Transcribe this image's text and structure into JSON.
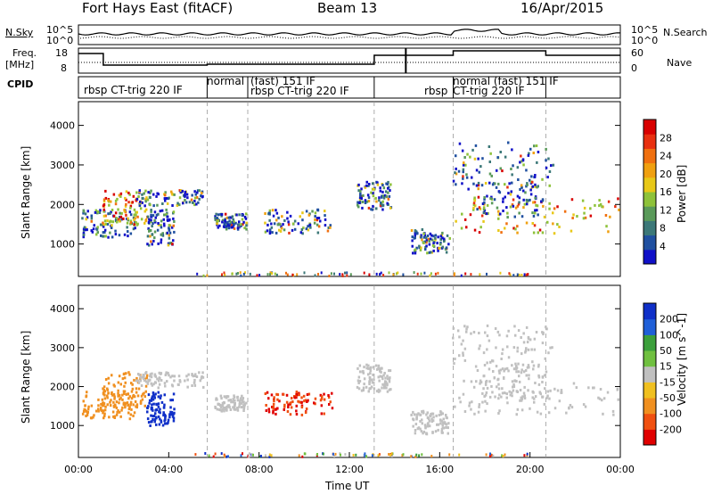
{
  "header": {
    "title": "Fort Hays East (fitACF)",
    "beam": "Beam 13",
    "date": "16/Apr/2015"
  },
  "top_panels": {
    "nsky_label": "N.Sky",
    "nsearch_label": "N.Search",
    "freq_label_line1": "Freq.",
    "freq_label_line2": "[MHz]",
    "nave_label": "Nave",
    "cpid_label": "CPID",
    "noise_ticks_left": [
      "10^5",
      "10^0"
    ],
    "noise_ticks_right": [
      "10^5",
      "10^0"
    ],
    "freq_ticks": [
      "18",
      "8"
    ],
    "nave_ticks": [
      "60",
      "0"
    ],
    "cpid_segments": [
      {
        "text": "rbsp CT-trig 220 IF"
      },
      {
        "text": "normal"
      },
      {
        "text": "(fast) 151 IF"
      },
      {
        "text": "rbsp CT-trig 220 IF"
      },
      {
        "text": "rbsp"
      },
      {
        "text": "normal (fast) 151 IF"
      },
      {
        "text": "CT-trig 220 IF"
      }
    ]
  },
  "chart_data": [
    {
      "type": "heatmap",
      "name": "power",
      "ylabel": "Slant Range [km]",
      "xlabel": "",
      "xlim_hours": [
        0,
        24
      ],
      "ylim": [
        180,
        4600
      ],
      "yticks": [
        1000,
        2000,
        3000,
        4000
      ],
      "colorbar": {
        "label": "Power [dB]",
        "ticks": [
          4,
          8,
          12,
          16,
          20,
          24,
          28
        ],
        "colors": [
          "#1010c8",
          "#2050a0",
          "#3c7878",
          "#5a9a5a",
          "#8ec23a",
          "#e8c818",
          "#f0a010",
          "#f07010",
          "#e83010",
          "#d80000"
        ]
      }
    },
    {
      "type": "heatmap",
      "name": "velocity",
      "ylabel": "Slant Range [km]",
      "xlabel": "Time UT",
      "xlim_hours": [
        0,
        24
      ],
      "ylim": [
        180,
        4600
      ],
      "yticks": [
        1000,
        2000,
        3000,
        4000
      ],
      "xticks": [
        "00:00",
        "04:00",
        "08:00",
        "12:00",
        "16:00",
        "20:00",
        "00:00"
      ],
      "colorbar": {
        "label": "Velocity [m s^-1]",
        "ticks": [
          "200",
          "100",
          "50",
          "15",
          "-15",
          "-50",
          "-100",
          "-200"
        ],
        "colors": [
          "#1030c8",
          "#2060d8",
          "#3ca03c",
          "#70c040",
          "#c0c0c0",
          "#f0c020",
          "#f09020",
          "#f05010",
          "#e00000"
        ]
      }
    }
  ]
}
